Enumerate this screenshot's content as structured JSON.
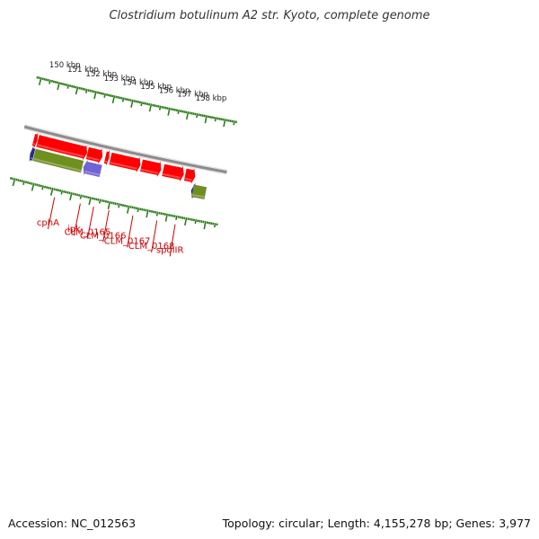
{
  "title": "Clostridium botulinum A2 str. Kyoto, complete genome",
  "footer": {
    "accession": "Accession: NC_012563",
    "summary": "Topology: circular; Length: 4,155,278 bp; Genes: 3,977"
  },
  "colors": {
    "backbone": "#8c8c8c",
    "cds": "#ff0000",
    "olive": "#6f8f1f",
    "blue": "#0000ee",
    "navy": "#2b2b8a",
    "purple": "#6f63d6",
    "tick": "#2e7d1a",
    "gene_label": "#cc0000"
  },
  "genome": {
    "visible_start_kbp": 149.45,
    "visible_end_kbp": 158.7
  },
  "scale": {
    "labels": [
      "150 kbp",
      "151 kbp",
      "152 kbp",
      "153 kbp",
      "154 kbp",
      "155 kbp",
      "156 kbp",
      "157 kbp",
      "158 kbp"
    ],
    "positions_kbp": [
      150,
      151,
      152,
      153,
      154,
      155,
      156,
      157,
      158
    ]
  },
  "features": [
    {
      "track": "reverse",
      "start": 149.45,
      "end": 149.62,
      "color": "navy",
      "strand": "-"
    },
    {
      "track": "reverse",
      "start": 149.67,
      "end": 152.2,
      "color": "olive",
      "strand": "0"
    },
    {
      "track": "reverse",
      "start": 152.28,
      "end": 153.18,
      "color": "purple",
      "strand": "-"
    },
    {
      "track": "reverse",
      "start": 157.98,
      "end": 158.7,
      "color": "blue",
      "strand": "-"
    },
    {
      "track": "reverse",
      "start": 158.05,
      "end": 158.7,
      "color": "olive",
      "strand": "0"
    },
    {
      "track": "forward",
      "start": 149.45,
      "end": 149.62,
      "color": "cds",
      "strand": "+"
    },
    {
      "track": "forward",
      "start": 149.67,
      "end": 152.28,
      "color": "cds",
      "strand": "+"
    },
    {
      "track": "forward",
      "start": 152.32,
      "end": 153.1,
      "color": "cds",
      "strand": "+"
    },
    {
      "track": "forward",
      "start": 153.28,
      "end": 153.45,
      "color": "cds",
      "strand": "+"
    },
    {
      "track": "forward",
      "start": 153.55,
      "end": 155.12,
      "color": "cds",
      "strand": "+"
    },
    {
      "track": "forward",
      "start": 155.2,
      "end": 156.22,
      "color": "cds",
      "strand": "+"
    },
    {
      "track": "forward",
      "start": 156.35,
      "end": 157.42,
      "color": "cds",
      "strand": "+"
    },
    {
      "track": "forward",
      "start": 157.52,
      "end": 158.02,
      "color": "cds",
      "strand": "+"
    }
  ],
  "gene_labels": [
    {
      "text": "cphA",
      "position_kbp": 151.2
    },
    {
      "text": "ipk",
      "position_kbp": 152.55
    },
    {
      "text": "CLM_0165",
      "position_kbp": 153.25
    },
    {
      "text": "CLM_0166",
      "position_kbp": 154.05
    },
    {
      "text": "CLM_0167",
      "position_kbp": 155.3
    },
    {
      "text": "CLM_0168",
      "position_kbp": 156.55
    },
    {
      "text": "spoIIR",
      "position_kbp": 157.5
    }
  ]
}
